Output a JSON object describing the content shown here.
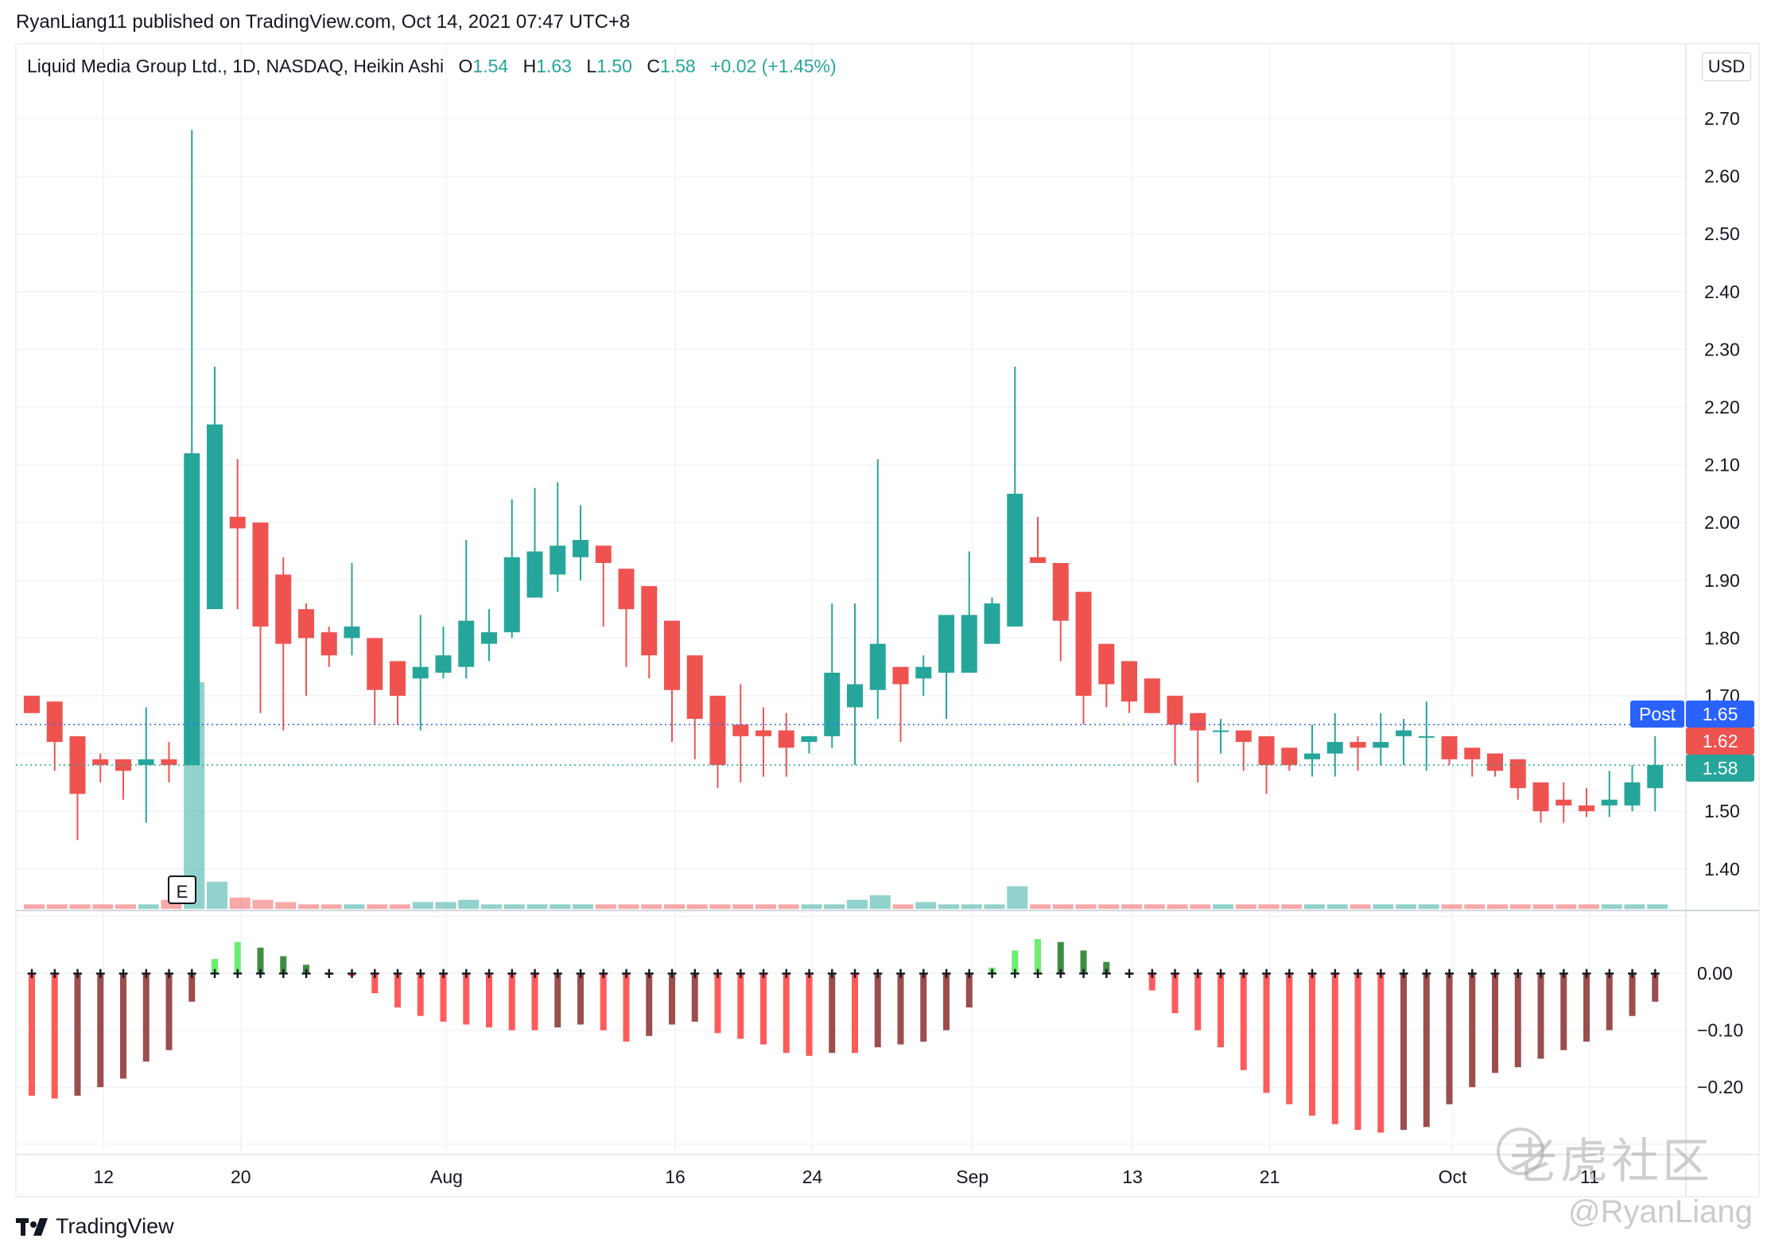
{
  "header": {
    "published_by": "RyanLiang11 published on TradingView.com, Oct 14, 2021 07:47 UTC+8"
  },
  "legend": {
    "symbol": "Liquid Media Group Ltd., 1D, NASDAQ, Heikin Ashi",
    "open_label": "O",
    "open": "1.54",
    "high_label": "H",
    "high": "1.63",
    "low_label": "L",
    "low": "1.50",
    "close_label": "C",
    "close": "1.58",
    "change": "+0.02 (+1.45%)"
  },
  "currency": "USD",
  "badges": {
    "post_label": "Post",
    "post_price": "1.65",
    "price_red": "1.62",
    "price_green": "1.58"
  },
  "earnings_marker": "E",
  "brand": {
    "name": "TradingView"
  },
  "watermark": {
    "site": "老虎社区",
    "user": "@RyanLiang"
  },
  "colors": {
    "up": "#26a69a",
    "down": "#ef5350",
    "osc_pos_strong": "#69f06e",
    "osc_pos_weak": "#3e8e41",
    "osc_neg_strong": "#ff5b5b",
    "osc_neg_weak": "#9c4d4d",
    "post_badge": "#2962ff"
  },
  "chart_data": [
    {
      "type": "candlestick",
      "title": "Liquid Media Group Ltd., 1D, NASDAQ, Heikin Ashi",
      "x_tick_labels": [
        "12",
        "20",
        "Aug",
        "16",
        "24",
        "Sep",
        "13",
        "21",
        "Oct",
        "11"
      ],
      "y_tick_labels": [
        "1.40",
        "1.50",
        "1.60",
        "1.70",
        "1.80",
        "1.90",
        "2.00",
        "2.10",
        "2.20",
        "2.30",
        "2.40",
        "2.50",
        "2.60",
        "2.70"
      ],
      "ylim": [
        1.34,
        2.79
      ],
      "grid": true,
      "ohlc": [
        [
          1.7,
          1.7,
          1.67,
          1.67
        ],
        [
          1.69,
          1.69,
          1.57,
          1.62
        ],
        [
          1.63,
          1.63,
          1.45,
          1.53
        ],
        [
          1.59,
          1.6,
          1.55,
          1.58
        ],
        [
          1.59,
          1.59,
          1.52,
          1.57
        ],
        [
          1.58,
          1.68,
          1.48,
          1.59
        ],
        [
          1.59,
          1.62,
          1.55,
          1.58
        ],
        [
          1.58,
          2.68,
          1.58,
          2.12
        ],
        [
          1.85,
          2.27,
          1.85,
          2.17
        ],
        [
          2.01,
          2.11,
          1.85,
          1.99
        ],
        [
          2.0,
          2.0,
          1.67,
          1.82
        ],
        [
          1.91,
          1.94,
          1.64,
          1.79
        ],
        [
          1.85,
          1.86,
          1.7,
          1.8
        ],
        [
          1.81,
          1.82,
          1.75,
          1.77
        ],
        [
          1.8,
          1.93,
          1.77,
          1.82
        ],
        [
          1.8,
          1.8,
          1.65,
          1.71
        ],
        [
          1.76,
          1.76,
          1.65,
          1.7
        ],
        [
          1.73,
          1.84,
          1.64,
          1.75
        ],
        [
          1.74,
          1.82,
          1.73,
          1.77
        ],
        [
          1.75,
          1.97,
          1.73,
          1.83
        ],
        [
          1.79,
          1.85,
          1.76,
          1.81
        ],
        [
          1.81,
          2.04,
          1.8,
          1.94
        ],
        [
          1.87,
          2.06,
          1.87,
          1.95
        ],
        [
          1.91,
          2.07,
          1.88,
          1.96
        ],
        [
          1.94,
          2.03,
          1.9,
          1.97
        ],
        [
          1.96,
          1.96,
          1.82,
          1.93
        ],
        [
          1.92,
          1.92,
          1.75,
          1.85
        ],
        [
          1.89,
          1.89,
          1.73,
          1.77
        ],
        [
          1.83,
          1.83,
          1.62,
          1.71
        ],
        [
          1.77,
          1.77,
          1.59,
          1.66
        ],
        [
          1.7,
          1.7,
          1.54,
          1.58
        ],
        [
          1.65,
          1.72,
          1.55,
          1.63
        ],
        [
          1.64,
          1.68,
          1.56,
          1.63
        ],
        [
          1.64,
          1.67,
          1.56,
          1.61
        ],
        [
          1.62,
          1.63,
          1.6,
          1.63
        ],
        [
          1.63,
          1.86,
          1.61,
          1.74
        ],
        [
          1.68,
          1.86,
          1.58,
          1.72
        ],
        [
          1.71,
          2.11,
          1.66,
          1.79
        ],
        [
          1.75,
          1.75,
          1.62,
          1.72
        ],
        [
          1.73,
          1.77,
          1.7,
          1.75
        ],
        [
          1.74,
          1.83,
          1.66,
          1.84
        ],
        [
          1.74,
          1.95,
          1.74,
          1.84
        ],
        [
          1.79,
          1.87,
          1.79,
          1.86
        ],
        [
          1.82,
          2.27,
          1.82,
          2.05
        ],
        [
          1.94,
          2.01,
          1.94,
          1.93
        ],
        [
          1.93,
          1.93,
          1.76,
          1.83
        ],
        [
          1.88,
          1.88,
          1.65,
          1.7
        ],
        [
          1.79,
          1.79,
          1.68,
          1.72
        ],
        [
          1.76,
          1.76,
          1.67,
          1.69
        ],
        [
          1.73,
          1.73,
          1.67,
          1.67
        ],
        [
          1.7,
          1.7,
          1.58,
          1.65
        ],
        [
          1.67,
          1.67,
          1.55,
          1.64
        ],
        [
          1.64,
          1.66,
          1.6,
          1.64
        ],
        [
          1.64,
          1.64,
          1.57,
          1.62
        ],
        [
          1.63,
          1.63,
          1.53,
          1.58
        ],
        [
          1.61,
          1.61,
          1.57,
          1.58
        ],
        [
          1.59,
          1.65,
          1.56,
          1.6
        ],
        [
          1.6,
          1.67,
          1.56,
          1.62
        ],
        [
          1.62,
          1.63,
          1.57,
          1.61
        ],
        [
          1.61,
          1.67,
          1.58,
          1.62
        ],
        [
          1.63,
          1.66,
          1.58,
          1.64
        ],
        [
          1.63,
          1.69,
          1.57,
          1.63
        ],
        [
          1.63,
          1.63,
          1.58,
          1.59
        ],
        [
          1.61,
          1.61,
          1.56,
          1.59
        ],
        [
          1.6,
          1.6,
          1.56,
          1.57
        ],
        [
          1.59,
          1.59,
          1.52,
          1.54
        ],
        [
          1.55,
          1.55,
          1.48,
          1.5
        ],
        [
          1.52,
          1.55,
          1.48,
          1.51
        ],
        [
          1.51,
          1.54,
          1.49,
          1.5
        ],
        [
          1.51,
          1.57,
          1.49,
          1.52
        ],
        [
          1.51,
          1.58,
          1.5,
          1.55
        ],
        [
          1.54,
          1.63,
          1.5,
          1.58
        ]
      ],
      "volume_rel": [
        0.02,
        0.02,
        0.02,
        0.02,
        0.02,
        0.02,
        0.04,
        1.0,
        0.12,
        0.05,
        0.04,
        0.03,
        0.02,
        0.02,
        0.02,
        0.02,
        0.02,
        0.03,
        0.03,
        0.04,
        0.02,
        0.02,
        0.02,
        0.02,
        0.02,
        0.02,
        0.02,
        0.02,
        0.02,
        0.02,
        0.02,
        0.02,
        0.02,
        0.02,
        0.02,
        0.02,
        0.04,
        0.06,
        0.02,
        0.03,
        0.02,
        0.02,
        0.02,
        0.1,
        0.02,
        0.02,
        0.02,
        0.02,
        0.02,
        0.02,
        0.02,
        0.02,
        0.02,
        0.02,
        0.02,
        0.02,
        0.02,
        0.02,
        0.02,
        0.02,
        0.02,
        0.02,
        0.02,
        0.02,
        0.02,
        0.02,
        0.02,
        0.02,
        0.02,
        0.02,
        0.02,
        0.02
      ]
    },
    {
      "type": "bar",
      "title": "",
      "y_tick_labels": [
        "0.00",
        "−0.10",
        "−0.20"
      ],
      "ylim": [
        -0.305,
        0.1
      ],
      "values": [
        -0.215,
        -0.22,
        -0.215,
        -0.2,
        -0.185,
        -0.155,
        -0.135,
        -0.05,
        0.025,
        0.055,
        0.045,
        0.03,
        0.015,
        0.0,
        -0.005,
        -0.035,
        -0.06,
        -0.075,
        -0.085,
        -0.09,
        -0.095,
        -0.1,
        -0.1,
        -0.095,
        -0.09,
        -0.1,
        -0.12,
        -0.11,
        -0.09,
        -0.085,
        -0.105,
        -0.115,
        -0.125,
        -0.14,
        -0.145,
        -0.14,
        -0.14,
        -0.13,
        -0.125,
        -0.12,
        -0.1,
        -0.06,
        0.01,
        0.04,
        0.06,
        0.055,
        0.04,
        0.02,
        0.0,
        -0.03,
        -0.07,
        -0.1,
        -0.13,
        -0.17,
        -0.21,
        -0.23,
        -0.25,
        -0.265,
        -0.275,
        -0.28,
        -0.275,
        -0.27,
        -0.23,
        -0.2,
        -0.175,
        -0.165,
        -0.15,
        -0.135,
        -0.12,
        -0.1,
        -0.075,
        -0.05
      ]
    }
  ]
}
